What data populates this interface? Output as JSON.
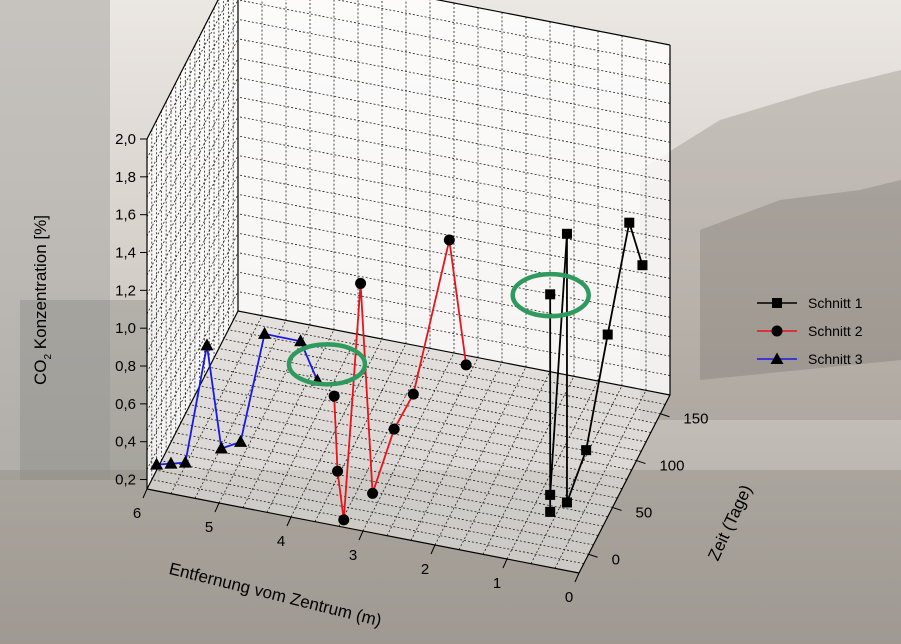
{
  "chart_data": {
    "type": "line",
    "projection": "3d",
    "x_axis": {
      "label": "Entfernung vom Zentrum (m)",
      "ticks": [
        "6",
        "5",
        "4",
        "3",
        "2",
        "1",
        "0"
      ],
      "range": [
        0,
        6
      ]
    },
    "y_axis": {
      "label": "Zeit (Tage)",
      "ticks": [
        "0",
        "50",
        "100",
        "150"
      ],
      "range": [
        -20,
        170
      ]
    },
    "z_axis": {
      "label_prefix": "CO",
      "label_subscript": "2",
      "label_suffix": " Konzentration [%]",
      "ticks": [
        "0,2",
        "0,4",
        "0,6",
        "0,8",
        "1,0",
        "1,2",
        "1,4",
        "1,6",
        "1,8",
        "2,0"
      ],
      "range": [
        0.15,
        2.0
      ]
    },
    "grid": true,
    "legend_position": "right",
    "series": [
      {
        "name": "Schnitt 1",
        "marker": "square",
        "color": "#000000",
        "points": [
          {
            "x": 0.6,
            "y": 10,
            "z": 0.28
          },
          {
            "x": 0.6,
            "y": 10,
            "z": 1.43
          },
          {
            "x": 0.6,
            "y": 10,
            "z": 0.37
          },
          {
            "x": 0.4,
            "y": 15,
            "z": 1.74
          },
          {
            "x": 0.4,
            "y": 15,
            "z": 0.32
          },
          {
            "x": 0.3,
            "y": 40,
            "z": 0.48
          },
          {
            "x": 0.2,
            "y": 70,
            "z": 0.95
          },
          {
            "x": 0.1,
            "y": 100,
            "z": 1.4
          },
          {
            "x": 0.05,
            "y": 120,
            "z": 1.08
          }
        ]
      },
      {
        "name": "Schnitt 2",
        "marker": "circle",
        "color": "#e8141b",
        "points": [
          {
            "x": 3.6,
            "y": 10,
            "z": 0.67
          },
          {
            "x": 3.5,
            "y": 2,
            "z": 0.32
          },
          {
            "x": 3.4,
            "y": 0,
            "z": 0.08
          },
          {
            "x": 3.2,
            "y": 5,
            "z": 1.32
          },
          {
            "x": 3.0,
            "y": 0,
            "z": 0.25
          },
          {
            "x": 2.8,
            "y": 15,
            "z": 0.53
          },
          {
            "x": 2.6,
            "y": 25,
            "z": 0.68
          },
          {
            "x": 2.2,
            "y": 40,
            "z": 1.45
          },
          {
            "x": 2.0,
            "y": 45,
            "z": 0.78
          }
        ]
      },
      {
        "name": "Schnitt 3",
        "marker": "triangle",
        "color": "#1919e6",
        "points": [
          {
            "x": 6.0,
            "y": 0,
            "z": 0.18
          },
          {
            "x": 5.8,
            "y": 0,
            "z": 0.2
          },
          {
            "x": 5.6,
            "y": 0,
            "z": 0.22
          },
          {
            "x": 5.4,
            "y": 15,
            "z": 0.78
          },
          {
            "x": 5.2,
            "y": 15,
            "z": 0.25
          },
          {
            "x": 5.0,
            "y": 25,
            "z": 0.25
          },
          {
            "x": 4.6,
            "y": 15,
            "z": 0.9
          },
          {
            "x": 4.0,
            "y": 0,
            "z": 0.98
          },
          {
            "x": 3.9,
            "y": 20,
            "z": 0.68
          }
        ]
      }
    ],
    "annotations": [
      {
        "type": "ellipse",
        "color": "#2e9a5e",
        "near": "Schnitt 2 / Schnitt 3, x = 3.9"
      },
      {
        "type": "ellipse",
        "color": "#2e9a5e",
        "near": "Schnitt 1, x = 0.6"
      }
    ]
  }
}
